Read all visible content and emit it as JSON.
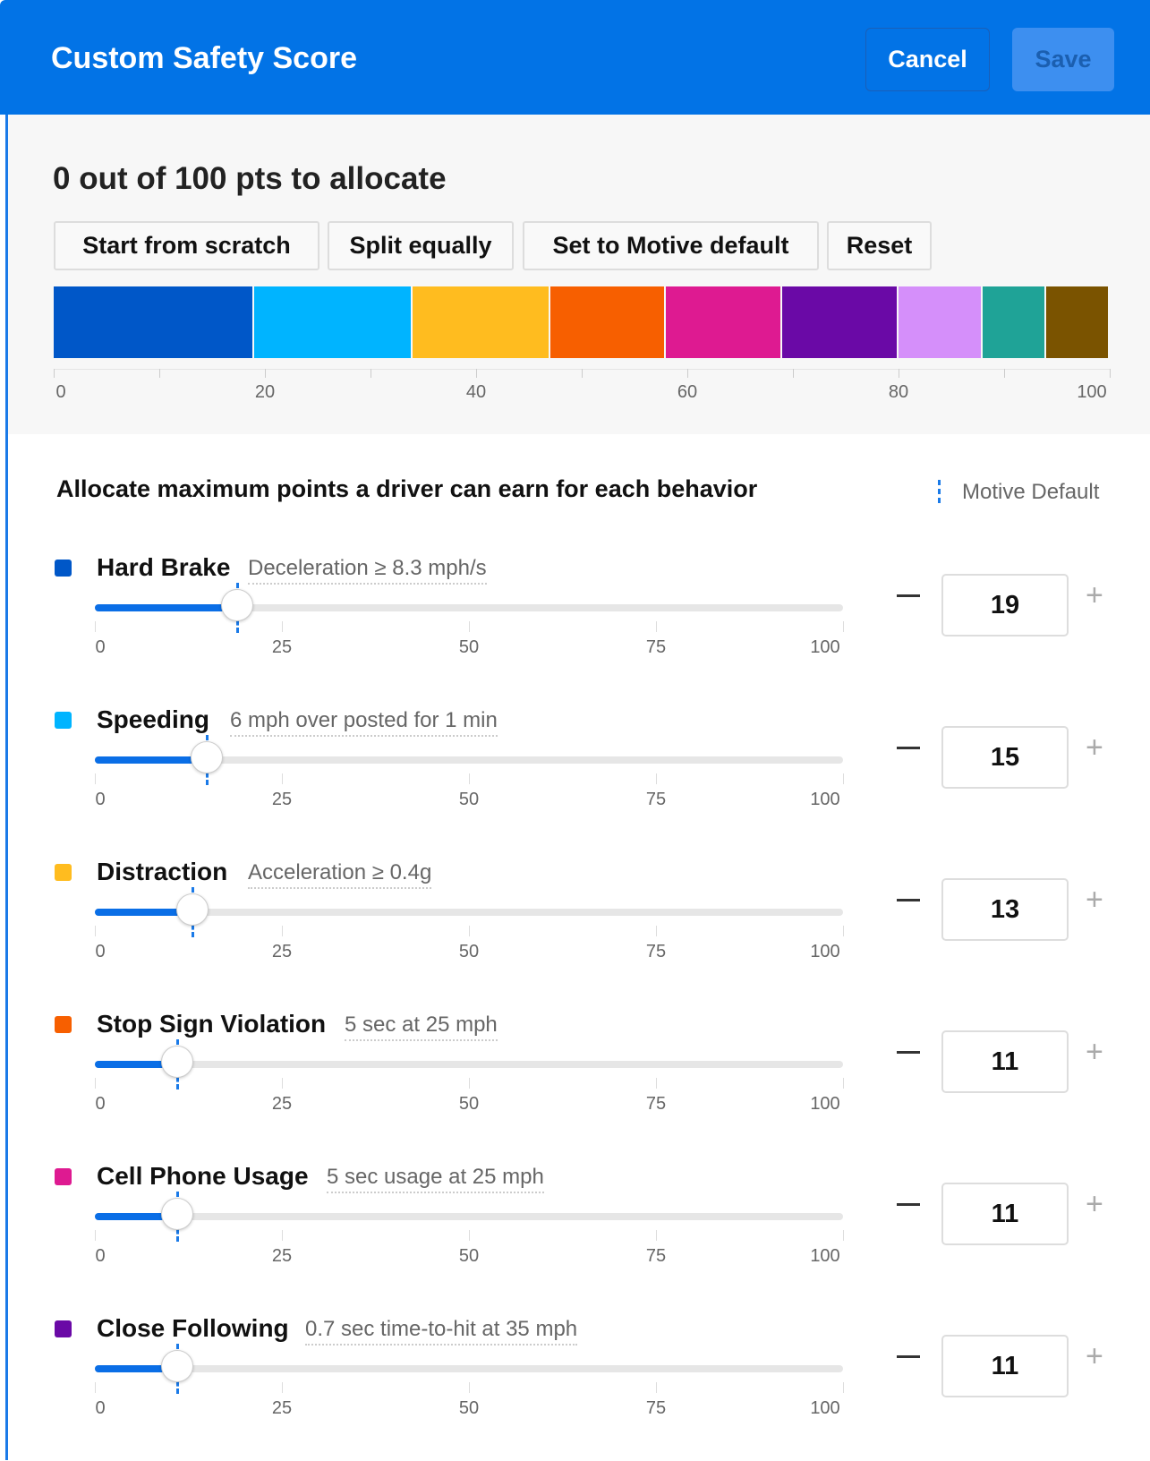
{
  "header": {
    "title": "Custom Safety Score",
    "cancel_label": "Cancel",
    "save_label": "Save"
  },
  "summary": {
    "text": "0 out of 100 pts to allocate"
  },
  "quick_actions": [
    "Start from scratch",
    "Split equally",
    "Set to Motive default",
    "Reset"
  ],
  "allocation_bar": {
    "segments": [
      {
        "value": 19,
        "color": "#0057c8"
      },
      {
        "value": 15,
        "color": "#00b4ff"
      },
      {
        "value": 13,
        "color": "#ffbc1f"
      },
      {
        "value": 11,
        "color": "#f75f00"
      },
      {
        "value": 11,
        "color": "#de1a91"
      },
      {
        "value": 11,
        "color": "#6a09a6"
      },
      {
        "value": 8,
        "color": "#d58ffa"
      },
      {
        "value": 6,
        "color": "#1fa397"
      },
      {
        "value": 6,
        "color": "#7a5300"
      }
    ],
    "ticks": [
      "0",
      "20",
      "40",
      "60",
      "80",
      "100"
    ]
  },
  "behaviors_section": {
    "title": "Allocate maximum points a driver can earn for each behavior",
    "legend_label": "Motive Default"
  },
  "slider_ticks": [
    "0",
    "25",
    "50",
    "75",
    "100"
  ],
  "behaviors": [
    {
      "name": "Hard Brake",
      "description": "Deceleration ≥ 8.3 mph/s",
      "value": "19",
      "percent": 19,
      "default": 19,
      "color": "#0057c8"
    },
    {
      "name": "Speeding",
      "description": "6 mph over posted for 1 min",
      "value": "15",
      "percent": 15,
      "default": 15,
      "color": "#00b4ff"
    },
    {
      "name": "Distraction",
      "description": "Acceleration ≥ 0.4g",
      "value": "13",
      "percent": 13,
      "default": 13,
      "color": "#ffbc1f"
    },
    {
      "name": "Stop Sign Violation",
      "description": "5 sec at 25 mph",
      "value": "11",
      "percent": 11,
      "default": 11,
      "color": "#f75f00"
    },
    {
      "name": "Cell Phone Usage",
      "description": "5 sec usage at 25 mph",
      "value": "11",
      "percent": 11,
      "default": 11,
      "color": "#de1a91"
    },
    {
      "name": "Close Following",
      "description": "0.7 sec time-to-hit at 35 mph",
      "value": "11",
      "percent": 11,
      "default": 11,
      "color": "#6a09a6"
    }
  ]
}
